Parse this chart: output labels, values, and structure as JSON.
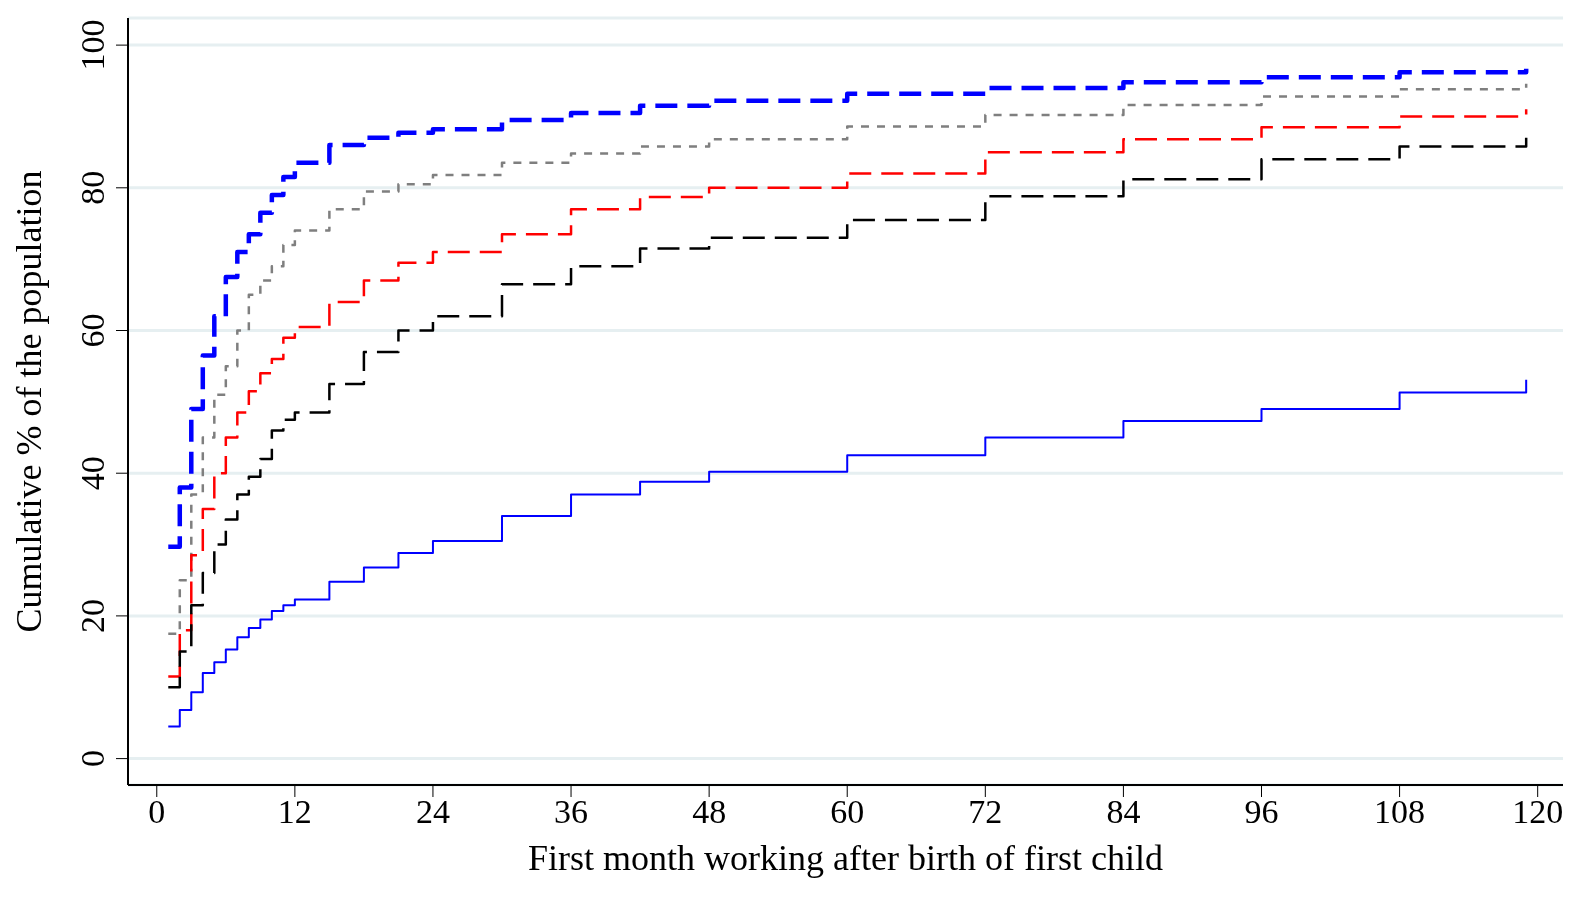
{
  "chart_data": {
    "type": "step",
    "xlabel": "First month working after birth of first child",
    "ylabel": "Cumulative % of the population",
    "x": [
      1,
      2,
      3,
      4,
      5,
      6,
      7,
      8,
      9,
      10,
      11,
      12,
      15,
      18,
      21,
      24,
      30,
      36,
      42,
      48,
      60,
      72,
      84,
      96,
      108,
      119
    ],
    "series": [
      {
        "color": "#0000ff",
        "line_style": "dashed",
        "values": [
          29.7,
          38,
          49,
          56.5,
          62,
          67.5,
          71,
          73.5,
          76.5,
          79,
          81.5,
          83.5,
          86,
          87,
          87.7,
          88.2,
          89.5,
          90.5,
          91.5,
          92.2,
          93.2,
          94,
          94.8,
          95.5,
          96.2,
          96.7
        ]
      },
      {
        "color": "#7f7f7f",
        "line_style": "dotted",
        "values": [
          17.5,
          25,
          37,
          45,
          51,
          55,
          60,
          65,
          67,
          69,
          72,
          74,
          77,
          79.5,
          80.5,
          81.8,
          83.5,
          84.8,
          85.8,
          86.8,
          88.6,
          90.2,
          91.6,
          92.8,
          93.8,
          94.6
        ]
      },
      {
        "color": "#ff0000",
        "line_style": "dashed",
        "values": [
          11.5,
          18,
          28.5,
          35,
          40,
          45,
          48.5,
          51.5,
          54,
          56,
          59,
          60.5,
          64,
          67,
          69.5,
          71,
          73.5,
          77,
          78.7,
          80,
          82,
          85,
          86.8,
          88.5,
          90,
          91
        ]
      },
      {
        "color": "#000000",
        "line_style": "dashed",
        "values": [
          10,
          15,
          21.5,
          26,
          30,
          33.5,
          37,
          39.5,
          42,
          46,
          47.5,
          48.5,
          52.5,
          57,
          60,
          62,
          66.5,
          69,
          71.5,
          73,
          75.5,
          78.8,
          81.2,
          84,
          85.8,
          87
        ]
      },
      {
        "color": "#0000ff",
        "line_style": "solid",
        "values": [
          4.5,
          6.8,
          9.3,
          12,
          13.5,
          15.3,
          17,
          18.3,
          19.5,
          20.7,
          21.5,
          22.3,
          24.8,
          26.8,
          28.8,
          30.5,
          34,
          37,
          38.8,
          40.2,
          42.5,
          45,
          47.3,
          49,
          51.3,
          53.1
        ]
      }
    ],
    "xlim": [
      -2.5,
      122.2
    ],
    "xticks": [
      0,
      12,
      24,
      36,
      48,
      60,
      72,
      84,
      96,
      108,
      120
    ],
    "ylim": [
      -3.7,
      103.8
    ],
    "yticks": [
      0,
      20,
      40,
      60,
      80,
      100
    ],
    "grid": "y"
  }
}
